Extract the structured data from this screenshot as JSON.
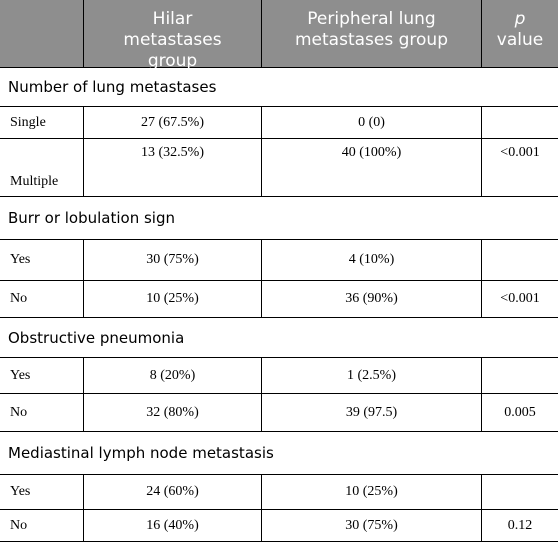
{
  "header": {
    "columns": [
      "Hilar metastases group",
      "Peripheral lung metastases group"
    ],
    "p_symbol": "p",
    "p_text": "value"
  },
  "sections": [
    {
      "title": "Number of lung metastases",
      "rows": [
        {
          "label": "Single",
          "hilar": "27 (67.5%)",
          "peripheral": "0 (0)"
        },
        {
          "label": "Multiple",
          "hilar": "13 (32.5%)",
          "peripheral": "40 (100%)",
          "p": "<0.001"
        }
      ]
    },
    {
      "title": "Burr or lobulation sign",
      "rows": [
        {
          "label": "Yes",
          "hilar": "30 (75%)",
          "peripheral": "4 (10%)"
        },
        {
          "label": "No",
          "hilar": "10 (25%)",
          "peripheral": "36 (90%)",
          "p": "<0.001"
        }
      ]
    },
    {
      "title": "Obstructive pneumonia",
      "rows": [
        {
          "label": "Yes",
          "hilar": "8 (20%)",
          "peripheral": "1 (2.5%)"
        },
        {
          "label": "No",
          "hilar": "32 (80%)",
          "peripheral": "39 (97.5)",
          "p": "0.005"
        }
      ]
    },
    {
      "title": "Mediastinal lymph node metastasis",
      "rows": [
        {
          "label": "Yes",
          "hilar": "24 (60%)",
          "peripheral": "10 (25%)"
        },
        {
          "label": "No",
          "hilar": "16 (40%)",
          "peripheral": "30 (75%)",
          "p": "0.12"
        }
      ]
    }
  ]
}
